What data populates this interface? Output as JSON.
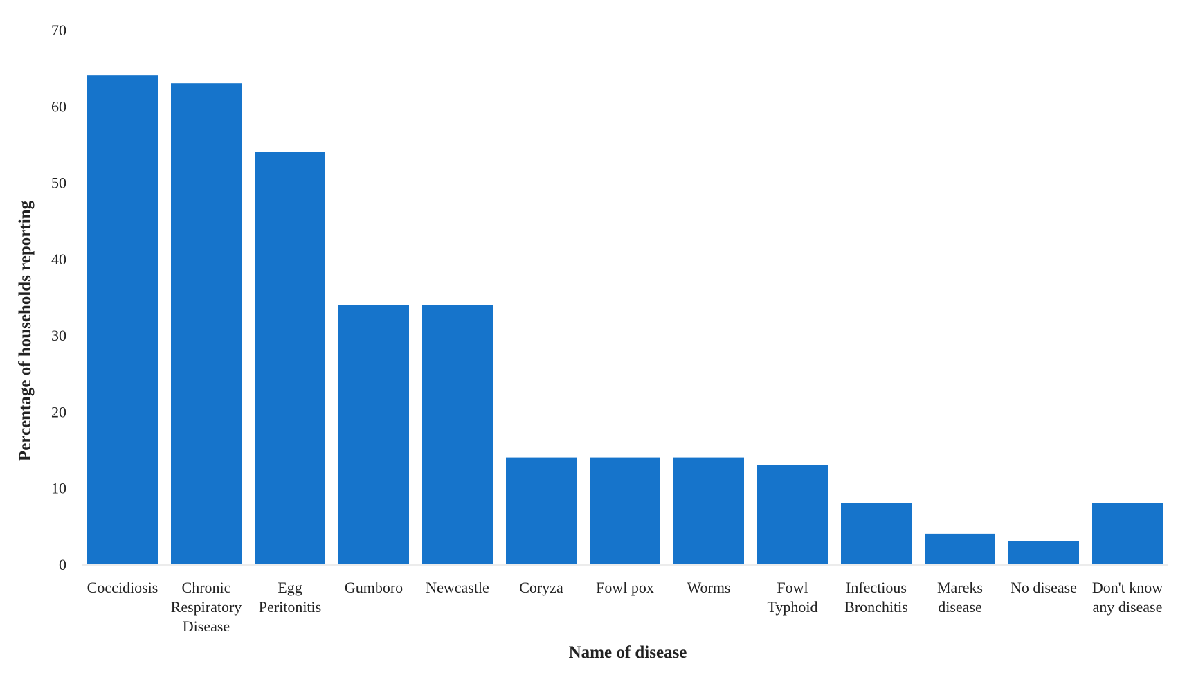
{
  "chart_data": {
    "type": "bar",
    "title": "",
    "xlabel": "Name of disease",
    "ylabel": "Percentage of households reporting",
    "categories": [
      [
        "Coccidiosis"
      ],
      [
        "Chronic",
        "Respiratory",
        "Disease"
      ],
      [
        "Egg",
        "Peritonitis"
      ],
      [
        "Gumboro"
      ],
      [
        "Newcastle"
      ],
      [
        "Coryza"
      ],
      [
        "Fowl pox"
      ],
      [
        "Worms"
      ],
      [
        "Fowl",
        "Typhoid"
      ],
      [
        "Infectious",
        "Bronchitis"
      ],
      [
        "Mareks",
        "disease"
      ],
      [
        "No disease"
      ],
      [
        "Don't know",
        "any disease"
      ]
    ],
    "values": [
      64,
      63,
      54,
      34,
      34,
      14,
      14,
      14,
      13,
      8,
      4,
      3,
      8
    ],
    "ylim": [
      0,
      70
    ],
    "yticks": [
      0,
      10,
      20,
      30,
      40,
      50,
      60,
      70
    ],
    "grid": false,
    "legend": "none",
    "bar_color": "#1674CB"
  }
}
